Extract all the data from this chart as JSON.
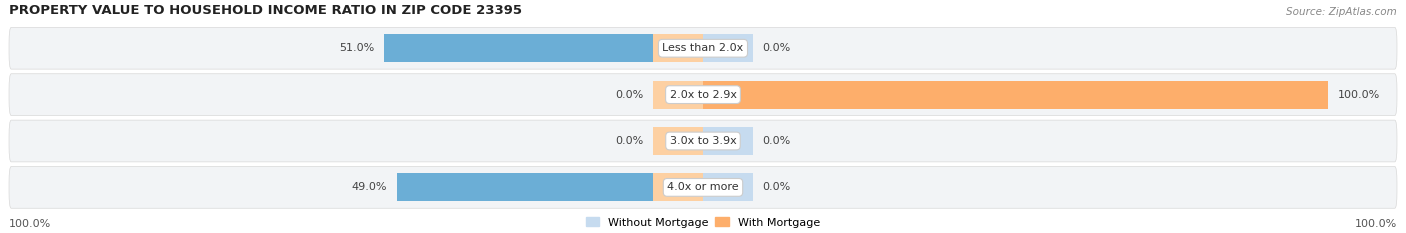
{
  "title": "PROPERTY VALUE TO HOUSEHOLD INCOME RATIO IN ZIP CODE 23395",
  "source": "Source: ZipAtlas.com",
  "categories": [
    "Less than 2.0x",
    "2.0x to 2.9x",
    "3.0x to 3.9x",
    "4.0x or more"
  ],
  "without_mortgage": [
    51.0,
    0.0,
    0.0,
    49.0
  ],
  "with_mortgage": [
    0.0,
    100.0,
    0.0,
    0.0
  ],
  "color_without": "#6baed6",
  "color_with": "#fdae6b",
  "color_without_stub": "#c6dbef",
  "color_with_stub": "#fdd0a2",
  "bg_row_even": "#f2f2f2",
  "bg_row_odd": "#ebebeb",
  "bg_white": "#ffffff",
  "axis_label_left": "100.0%",
  "axis_label_right": "100.0%",
  "legend_without": "Without Mortgage",
  "legend_with": "With Mortgage",
  "title_fontsize": 9.5,
  "label_fontsize": 8.0,
  "source_fontsize": 7.5,
  "stub_bar_size": 8.0,
  "max_bar": 100
}
